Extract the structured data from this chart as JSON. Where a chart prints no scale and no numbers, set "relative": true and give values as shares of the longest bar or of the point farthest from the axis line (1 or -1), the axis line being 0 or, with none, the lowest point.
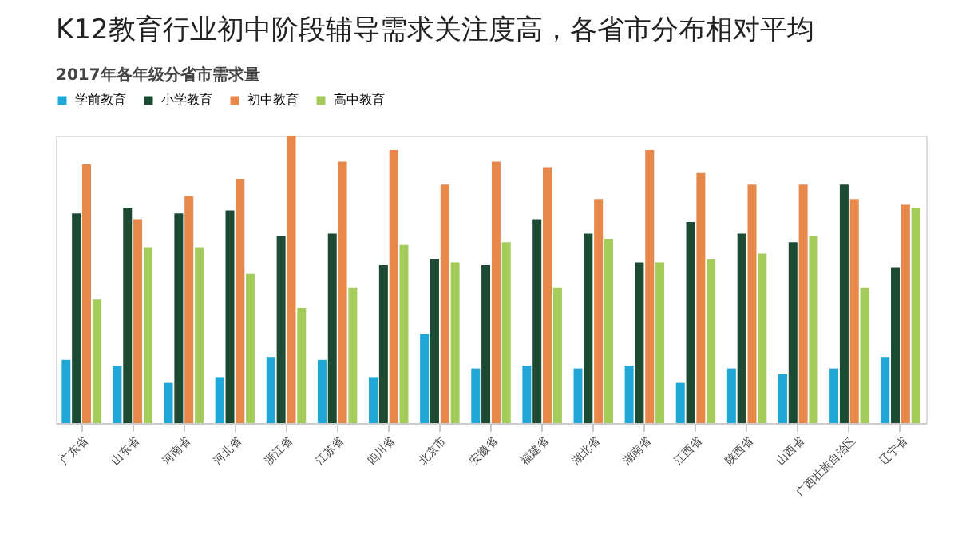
{
  "chart_data": {
    "type": "bar",
    "title": "K12教育行业初中阶段辅导需求关注度高，各省市分布相对平均",
    "subtitle": "2017年各年级分省市需求量",
    "relative": true,
    "legend": "top",
    "grid": false,
    "categories": [
      "广东省",
      "山东省",
      "河南省",
      "河北省",
      "浙江省",
      "江苏省",
      "四川省",
      "北京市",
      "安徽省",
      "福建省",
      "湖北省",
      "湖南省",
      "江西省",
      "陕西省",
      "山西省",
      "广西壮族自治区",
      "辽宁省"
    ],
    "series": [
      {
        "name": "学前教育",
        "color": "#1fa7d8",
        "values": [
          0.22,
          0.2,
          0.14,
          0.16,
          0.23,
          0.22,
          0.16,
          0.31,
          0.19,
          0.2,
          0.19,
          0.2,
          0.14,
          0.19,
          0.17,
          0.19,
          0.23
        ]
      },
      {
        "name": "小学教育",
        "color": "#1d4a33",
        "values": [
          0.73,
          0.75,
          0.73,
          0.74,
          0.65,
          0.66,
          0.55,
          0.57,
          0.55,
          0.71,
          0.66,
          0.56,
          0.7,
          0.66,
          0.63,
          0.83,
          0.54
        ]
      },
      {
        "name": "初中教育",
        "color": "#e8874a",
        "values": [
          0.9,
          0.71,
          0.79,
          0.85,
          1.0,
          0.91,
          0.95,
          0.83,
          0.91,
          0.89,
          0.78,
          0.95,
          0.87,
          0.83,
          0.83,
          0.78,
          0.76
        ]
      },
      {
        "name": "高中教育",
        "color": "#a3cc5a",
        "values": [
          0.43,
          0.61,
          0.61,
          0.52,
          0.4,
          0.47,
          0.62,
          0.56,
          0.63,
          0.47,
          0.64,
          0.56,
          0.57,
          0.59,
          0.65,
          0.47,
          0.75
        ]
      }
    ]
  }
}
